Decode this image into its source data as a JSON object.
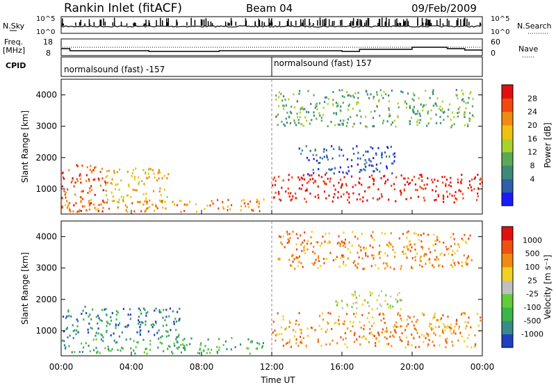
{
  "header": {
    "title": "Rankin Inlet (fitACF)",
    "beam": "Beam 04",
    "date": "09/Feb/2009"
  },
  "top_panel": {
    "left_label": "N.Sky",
    "right_label": "N.Search",
    "ticks": [
      "10^5",
      "10^0"
    ],
    "right_ticks": [
      "10^5",
      "10^0"
    ]
  },
  "freq_panel": {
    "label_line1": "Freq.",
    "label_line2": "[MHz]",
    "ticks": [
      "18",
      "8"
    ],
    "right_label": "Nave",
    "right_ticks": [
      "60",
      "0"
    ]
  },
  "cpid": {
    "label": "CPID",
    "segments": [
      {
        "text": "normalsound (fast) -157",
        "start_hour": 0
      },
      {
        "text": "normalsound (fast) 157",
        "start_hour": 12
      }
    ]
  },
  "chart_data": [
    {
      "type": "heatmap",
      "name": "power",
      "ylabel": "Slant Range [km]",
      "xlabel": "",
      "ylim": [
        200,
        4500
      ],
      "yticks": [
        "1000",
        "2000",
        "3000",
        "4000"
      ],
      "xlim_hours": [
        0,
        24
      ],
      "colorbar_label": "Power [dB]",
      "colorbar_ticks": [
        "28",
        "24",
        "20",
        "16",
        "12",
        "8",
        "4"
      ],
      "colors": [
        "#1a1aff",
        "#2e5fa8",
        "#3e8a7a",
        "#5aaa55",
        "#aad22e",
        "#f2c010",
        "#f08a10",
        "#f04a10",
        "#e01010"
      ],
      "regions": [
        {
          "t0": 0.0,
          "t1": 2.5,
          "r0": 300,
          "r1": 1800,
          "level": 7
        },
        {
          "t0": 2.5,
          "t1": 6.2,
          "r0": 600,
          "r1": 1700,
          "level": 5
        },
        {
          "t0": 0.0,
          "t1": 11.5,
          "r0": 300,
          "r1": 700,
          "level": 6
        },
        {
          "t0": 12.0,
          "t1": 24.0,
          "r0": 600,
          "r1": 1500,
          "level": 8
        },
        {
          "t0": 13.5,
          "t1": 19.0,
          "r0": 1500,
          "r1": 2400,
          "level": 1
        },
        {
          "t0": 12.2,
          "t1": 23.5,
          "r0": 3000,
          "r1": 4200,
          "level": 3
        }
      ]
    },
    {
      "type": "heatmap",
      "name": "velocity",
      "ylabel": "Slant Range [km]",
      "xlabel": "Time UT",
      "ylim": [
        200,
        4500
      ],
      "yticks": [
        "1000",
        "2000",
        "3000",
        "4000"
      ],
      "xticks": [
        "00:00",
        "04:00",
        "08:00",
        "12:00",
        "16:00",
        "20:00",
        "00:00"
      ],
      "xlim_hours": [
        0,
        24
      ],
      "colorbar_label": "Velocity [m s⁻¹]",
      "colorbar_ticks": [
        "1000",
        "500",
        "100",
        "25",
        "-25",
        "-100",
        "-500",
        "-1000"
      ],
      "colors": [
        "#2040c0",
        "#3a8a8a",
        "#3cb44a",
        "#62cc3a",
        "#c0c0c0",
        "#f2d020",
        "#f08a10",
        "#f05010",
        "#e01010"
      ],
      "regions": [
        {
          "t0": 0.0,
          "t1": 6.8,
          "r0": 800,
          "r1": 1800,
          "level": 1
        },
        {
          "t0": 0.0,
          "t1": 11.5,
          "r0": 300,
          "r1": 800,
          "level": 2
        },
        {
          "t0": 12.0,
          "t1": 24.0,
          "r0": 500,
          "r1": 1600,
          "level": 6
        },
        {
          "t0": 15.5,
          "t1": 19.5,
          "r0": 1700,
          "r1": 2300,
          "level": 4
        },
        {
          "t0": 12.2,
          "t1": 23.5,
          "r0": 3000,
          "r1": 4200,
          "level": 6
        }
      ]
    }
  ]
}
